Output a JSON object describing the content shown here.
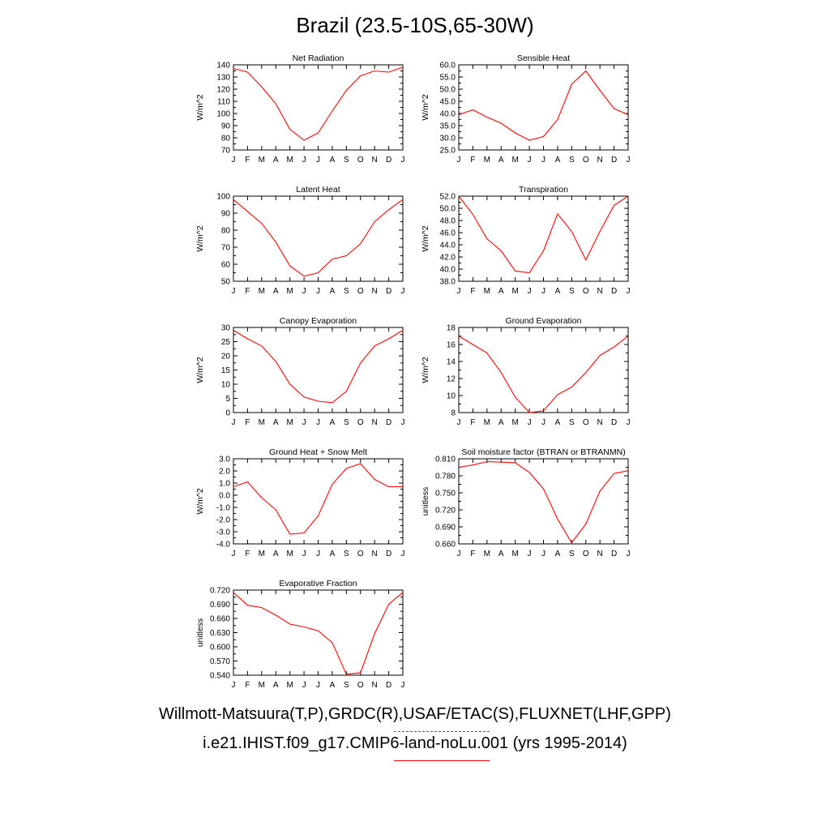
{
  "title": "Brazil (23.5-10S,65-30W)",
  "colors": {
    "model_line": "#ff0000",
    "obs_line": "#4444ff",
    "axis": "#000000"
  },
  "footer": {
    "obs_sources": "Willmott-Matsuura(T,P),GRDC(R),USAF/ETAC(S),FLUXNET(LHF,GPP)",
    "case": "i.e21.IHIST.f09_g17.CMIP6-land-noLu.001 (yrs 1995-2014)"
  },
  "chart_data": [
    {
      "type": "line",
      "title": "Net Radiation",
      "ylabel": "W/m^2",
      "categories": [
        "J",
        "F",
        "M",
        "A",
        "M",
        "J",
        "J",
        "A",
        "S",
        "O",
        "N",
        "D",
        "J"
      ],
      "ylim": [
        70,
        140
      ],
      "yticks": [
        70,
        80,
        90,
        100,
        110,
        120,
        130,
        140
      ],
      "ytick_labels": [
        "70",
        "80",
        "90",
        "100",
        "110",
        "120",
        "130",
        "140"
      ],
      "series": [
        {
          "values": [
            137,
            134,
            122,
            108,
            87,
            78,
            84,
            102,
            119,
            131,
            135,
            134,
            138
          ]
        }
      ]
    },
    {
      "type": "line",
      "title": "Sensible Heat",
      "ylabel": "W/m^2",
      "categories": [
        "J",
        "F",
        "M",
        "A",
        "M",
        "J",
        "J",
        "A",
        "S",
        "O",
        "N",
        "D",
        "J"
      ],
      "ylim": [
        25,
        60
      ],
      "yticks": [
        25,
        30,
        35,
        40,
        45,
        50,
        55,
        60
      ],
      "ytick_labels": [
        "25.0",
        "30.0",
        "35.0",
        "40.0",
        "45.0",
        "50.0",
        "55.0",
        "60.0"
      ],
      "series": [
        {
          "values": [
            39.5,
            41.5,
            38.5,
            36,
            32,
            29,
            30.5,
            37.5,
            52,
            57.5,
            49.5,
            42,
            39.5
          ]
        }
      ]
    },
    {
      "type": "line",
      "title": "Latent Heat",
      "ylabel": "W/m^2",
      "categories": [
        "J",
        "F",
        "M",
        "A",
        "M",
        "J",
        "J",
        "A",
        "S",
        "O",
        "N",
        "D",
        "J"
      ],
      "ylim": [
        50,
        100
      ],
      "yticks": [
        50,
        60,
        70,
        80,
        90,
        100
      ],
      "ytick_labels": [
        "50",
        "60",
        "70",
        "80",
        "90",
        "100"
      ],
      "series": [
        {
          "values": [
            98,
            91,
            84,
            73,
            59,
            53,
            55,
            63,
            65,
            72,
            85,
            92,
            98
          ]
        }
      ]
    },
    {
      "type": "line",
      "title": "Transpiration",
      "ylabel": "W/m^2",
      "categories": [
        "J",
        "F",
        "M",
        "A",
        "M",
        "J",
        "J",
        "A",
        "S",
        "O",
        "N",
        "D",
        "J"
      ],
      "ylim": [
        38,
        52
      ],
      "yticks": [
        38,
        40,
        42,
        44,
        46,
        48,
        50,
        52
      ],
      "ytick_labels": [
        "38.0",
        "40.0",
        "42.0",
        "44.0",
        "46.0",
        "48.0",
        "50.0",
        "52.0"
      ],
      "series": [
        {
          "values": [
            52,
            49,
            45,
            43,
            39.7,
            39.4,
            43,
            49.1,
            46.2,
            41.5,
            46.2,
            50.5,
            52
          ]
        }
      ]
    },
    {
      "type": "line",
      "title": "Canopy Evaporation",
      "ylabel": "W/m^2",
      "categories": [
        "J",
        "F",
        "M",
        "A",
        "M",
        "J",
        "J",
        "A",
        "S",
        "O",
        "N",
        "D",
        "J"
      ],
      "ylim": [
        0,
        30
      ],
      "yticks": [
        0,
        5,
        10,
        15,
        20,
        25,
        30
      ],
      "ytick_labels": [
        "0",
        "5",
        "10",
        "15",
        "20",
        "25",
        "30"
      ],
      "series": [
        {
          "values": [
            29,
            26,
            23.5,
            18,
            10,
            5.5,
            4,
            3.5,
            7.5,
            17.5,
            23.5,
            26,
            29
          ]
        }
      ]
    },
    {
      "type": "line",
      "title": "Ground Evaporation",
      "ylabel": "W/m^2",
      "categories": [
        "J",
        "F",
        "M",
        "A",
        "M",
        "J",
        "J",
        "A",
        "S",
        "O",
        "N",
        "D",
        "J"
      ],
      "ylim": [
        8,
        18
      ],
      "yticks": [
        8,
        10,
        12,
        14,
        16,
        18
      ],
      "ytick_labels": [
        "8",
        "10",
        "12",
        "14",
        "16",
        "18"
      ],
      "series": [
        {
          "values": [
            17,
            16,
            15,
            12.7,
            9.8,
            8,
            8.2,
            10.1,
            11,
            12.7,
            14.7,
            15.7,
            17
          ]
        }
      ]
    },
    {
      "type": "line",
      "title": "Ground Heat + Snow Melt",
      "ylabel": "W/m^2",
      "categories": [
        "J",
        "F",
        "M",
        "A",
        "M",
        "J",
        "J",
        "A",
        "S",
        "O",
        "N",
        "D",
        "J"
      ],
      "ylim": [
        -4,
        3
      ],
      "yticks": [
        -4,
        -3,
        -2,
        -1,
        0,
        1,
        2,
        3
      ],
      "ytick_labels": [
        "-4.0",
        "-3.0",
        "-2.0",
        "-1.0",
        "0.0",
        "1.0",
        "2.0",
        "3.0"
      ],
      "series": [
        {
          "values": [
            0.7,
            1.1,
            -0.2,
            -1.2,
            -3.2,
            -3.1,
            -1.7,
            0.9,
            2.2,
            2.6,
            1.3,
            0.7,
            0.7
          ]
        }
      ]
    },
    {
      "type": "line",
      "title": "Soil moisture factor (BTRAN or BTRANMN)",
      "ylabel": "unitless",
      "categories": [
        "J",
        "F",
        "M",
        "A",
        "M",
        "J",
        "J",
        "A",
        "S",
        "O",
        "N",
        "D",
        "J"
      ],
      "ylim": [
        0.66,
        0.81
      ],
      "yticks": [
        0.66,
        0.69,
        0.72,
        0.75,
        0.78,
        0.81
      ],
      "ytick_labels": [
        "0.660",
        "0.690",
        "0.720",
        "0.750",
        "0.780",
        "0.810"
      ],
      "series": [
        {
          "values": [
            0.795,
            0.799,
            0.805,
            0.804,
            0.803,
            0.786,
            0.757,
            0.704,
            0.662,
            0.695,
            0.753,
            0.784,
            0.789
          ]
        }
      ]
    },
    {
      "type": "line",
      "title": "Evaporative Fraction",
      "ylabel": "unitless",
      "categories": [
        "J",
        "F",
        "M",
        "A",
        "M",
        "J",
        "J",
        "A",
        "S",
        "O",
        "N",
        "D",
        "J"
      ],
      "ylim": [
        0.54,
        0.72
      ],
      "yticks": [
        0.54,
        0.57,
        0.6,
        0.63,
        0.66,
        0.69,
        0.72
      ],
      "ytick_labels": [
        "0.540",
        "0.570",
        "0.600",
        "0.630",
        "0.660",
        "0.690",
        "0.720"
      ],
      "series": [
        {
          "values": [
            0.715,
            0.688,
            0.683,
            0.667,
            0.648,
            0.642,
            0.634,
            0.609,
            0.542,
            0.545,
            0.628,
            0.69,
            0.715
          ]
        }
      ]
    }
  ]
}
